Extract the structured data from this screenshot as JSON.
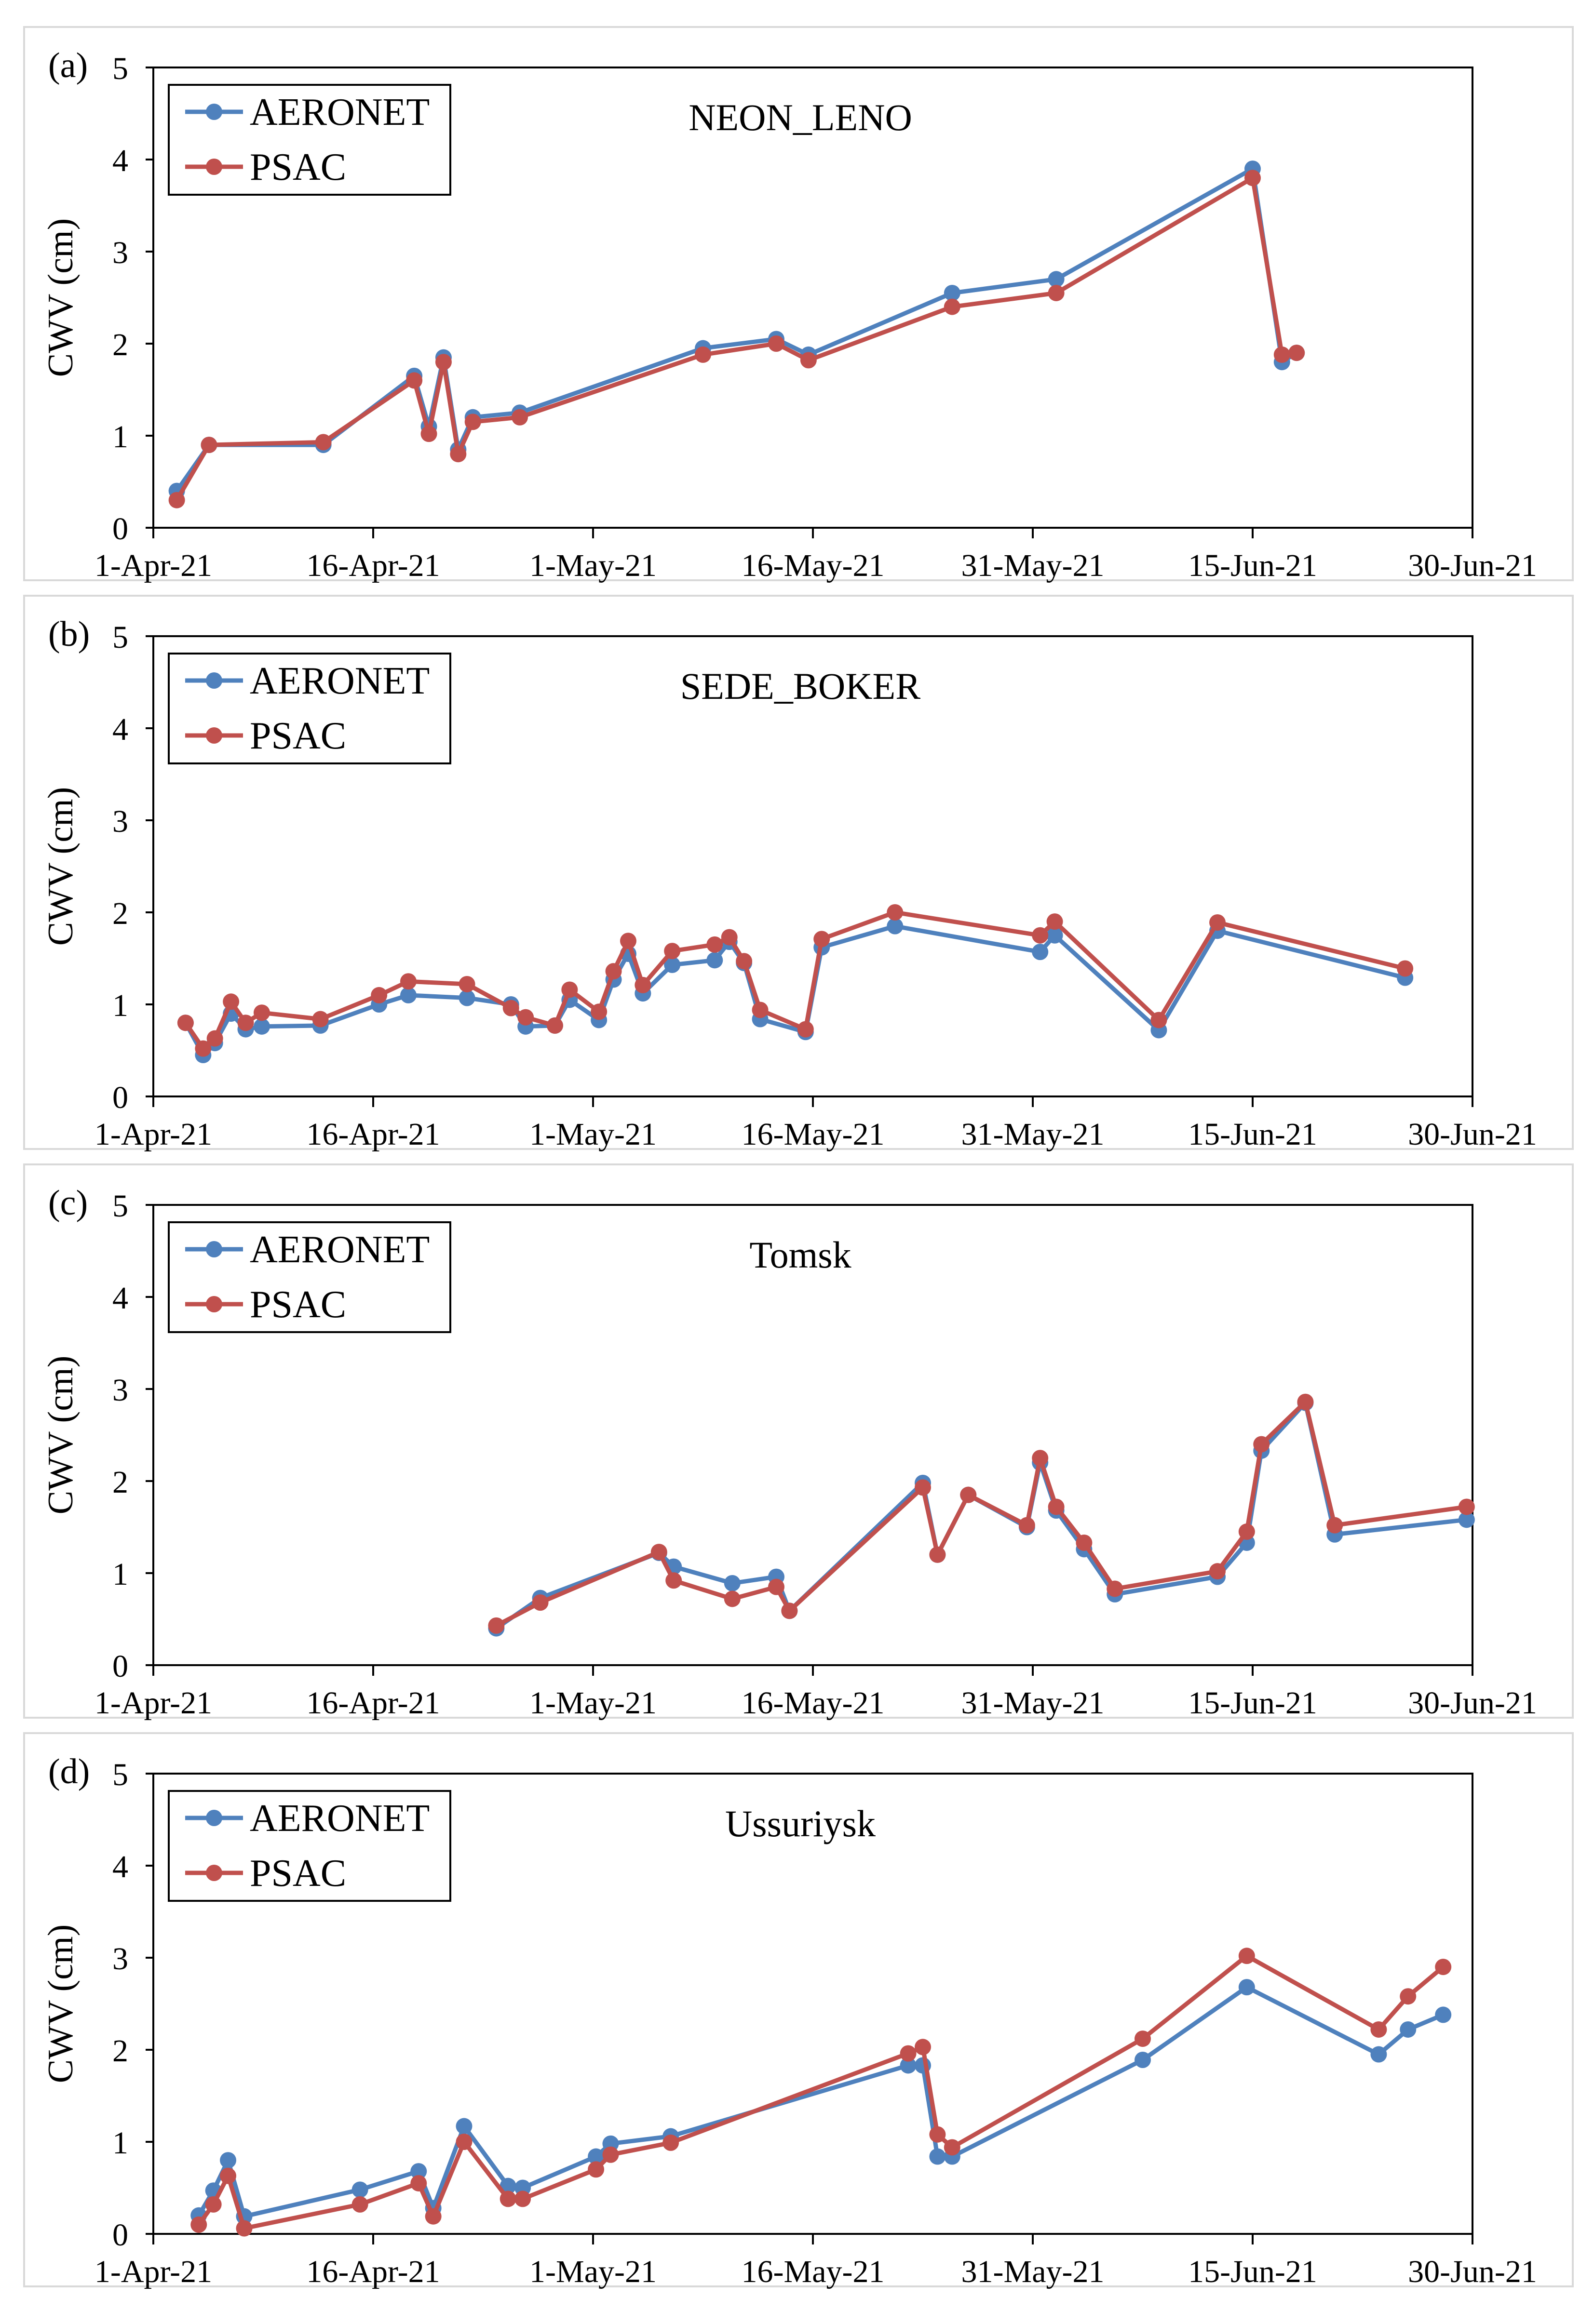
{
  "figure": {
    "series_names": [
      "AERONET",
      "PSAC"
    ],
    "series_colors": {
      "AERONET": "#4F81BD",
      "PSAC": "#C0504D"
    }
  },
  "chart_data": [
    {
      "type": "line",
      "panel_label": "(a)",
      "title": "NEON_LENO",
      "xlabel": "",
      "ylabel": "CWV (cm)",
      "ylim": [
        0,
        5
      ],
      "yticks": [
        "0",
        "1",
        "2",
        "3",
        "4",
        "5"
      ],
      "xlim_days": [
        0,
        90
      ],
      "xticks": [
        "1-Apr-21",
        "16-Apr-21",
        "1-May-21",
        "16-May-21",
        "31-May-21",
        "15-Jun-21",
        "30-Jun-21"
      ],
      "legend": {
        "position": "top-left",
        "entries": [
          "AERONET",
          "PSAC"
        ]
      },
      "series": [
        {
          "name": "AERONET",
          "x": [
            1.6,
            3.8,
            11.6,
            17.8,
            18.8,
            19.8,
            20.8,
            21.8,
            25,
            37.5,
            42.5,
            44.7,
            54.5,
            61.6,
            75,
            77,
            78
          ],
          "y": [
            0.4,
            0.9,
            0.9,
            1.65,
            1.1,
            1.85,
            0.85,
            1.2,
            1.25,
            1.95,
            2.05,
            1.88,
            2.55,
            2.7,
            3.9,
            1.8,
            1.9
          ]
        },
        {
          "name": "PSAC",
          "x": [
            1.6,
            3.8,
            11.6,
            17.8,
            18.8,
            19.8,
            20.8,
            21.8,
            25,
            37.5,
            42.5,
            44.7,
            54.5,
            61.6,
            75,
            77,
            78
          ],
          "y": [
            0.3,
            0.9,
            0.93,
            1.6,
            1.02,
            1.8,
            0.8,
            1.15,
            1.2,
            1.88,
            2.0,
            1.82,
            2.4,
            2.55,
            3.8,
            1.88,
            1.9
          ]
        }
      ]
    },
    {
      "type": "line",
      "panel_label": "(b)",
      "title": "SEDE_BOKER",
      "xlabel": "",
      "ylabel": "CWV (cm)",
      "ylim": [
        0,
        5
      ],
      "yticks": [
        "0",
        "1",
        "2",
        "3",
        "4",
        "5"
      ],
      "xlim_days": [
        0,
        90
      ],
      "xticks": [
        "1-Apr-21",
        "16-Apr-21",
        "1-May-21",
        "16-May-21",
        "31-May-21",
        "15-Jun-21",
        "30-Jun-21"
      ],
      "legend": {
        "position": "top-left",
        "entries": [
          "AERONET",
          "PSAC"
        ]
      },
      "series": [
        {
          "name": "AERONET",
          "x": [
            2.2,
            3.4,
            4.2,
            5.3,
            6.3,
            7.4,
            11.4,
            15.4,
            17.4,
            21.4,
            24.4,
            25.4,
            27.4,
            28.4,
            30.4,
            31.4,
            32.4,
            33.4,
            35.4,
            38.3,
            39.3,
            40.3,
            41.4,
            44.5,
            45.6,
            50.6,
            60.5,
            61.5,
            68.6,
            72.6,
            85.4
          ],
          "y": [
            0.8,
            0.45,
            0.58,
            0.9,
            0.73,
            0.76,
            0.77,
            1.0,
            1.1,
            1.07,
            1.0,
            0.76,
            0.77,
            1.05,
            0.83,
            1.27,
            1.55,
            1.12,
            1.43,
            1.48,
            1.68,
            1.45,
            0.84,
            0.7,
            1.62,
            1.85,
            1.57,
            1.75,
            0.72,
            1.8,
            1.29
          ]
        },
        {
          "name": "PSAC",
          "x": [
            2.2,
            3.4,
            4.2,
            5.3,
            6.3,
            7.4,
            11.4,
            15.4,
            17.4,
            21.4,
            24.4,
            25.4,
            27.4,
            28.4,
            30.4,
            31.4,
            32.4,
            33.4,
            35.4,
            38.3,
            39.3,
            40.3,
            41.4,
            44.5,
            45.6,
            50.6,
            60.5,
            61.5,
            68.6,
            72.6,
            85.4
          ],
          "y": [
            0.8,
            0.52,
            0.63,
            1.03,
            0.8,
            0.91,
            0.84,
            1.1,
            1.25,
            1.22,
            0.96,
            0.86,
            0.77,
            1.16,
            0.92,
            1.36,
            1.69,
            1.21,
            1.58,
            1.65,
            1.73,
            1.47,
            0.94,
            0.73,
            1.71,
            2.0,
            1.75,
            1.9,
            0.83,
            1.89,
            1.39
          ]
        }
      ]
    },
    {
      "type": "line",
      "panel_label": "(c)",
      "title": "Tomsk",
      "xlabel": "",
      "ylabel": "CWV (cm)",
      "ylim": [
        0,
        5
      ],
      "yticks": [
        "0",
        "1",
        "2",
        "3",
        "4",
        "5"
      ],
      "xlim_days": [
        0,
        90
      ],
      "xticks": [
        "1-Apr-21",
        "16-Apr-21",
        "1-May-21",
        "16-May-21",
        "31-May-21",
        "15-Jun-21",
        "30-Jun-21"
      ],
      "legend": {
        "position": "top-left",
        "entries": [
          "AERONET",
          "PSAC"
        ]
      },
      "series": [
        {
          "name": "AERONET",
          "x": [
            23.4,
            26.4,
            34.5,
            35.5,
            39.5,
            42.5,
            43.4,
            52.5,
            53.5,
            55.6,
            59.6,
            60.5,
            61.6,
            63.5,
            65.6,
            72.6,
            74.6,
            75.6,
            78.6,
            80.6,
            89.6
          ],
          "y": [
            0.4,
            0.73,
            1.22,
            1.07,
            0.89,
            0.96,
            0.59,
            1.98,
            1.2,
            1.85,
            1.5,
            2.2,
            1.68,
            1.26,
            0.77,
            0.96,
            1.33,
            2.33,
            2.85,
            1.42,
            1.58
          ]
        },
        {
          "name": "PSAC",
          "x": [
            23.4,
            26.4,
            34.5,
            35.5,
            39.5,
            42.5,
            43.4,
            52.5,
            53.5,
            55.6,
            59.6,
            60.5,
            61.6,
            63.5,
            65.6,
            72.6,
            74.6,
            75.6,
            78.6,
            80.6,
            89.6
          ],
          "y": [
            0.43,
            0.68,
            1.23,
            0.92,
            0.72,
            0.85,
            0.59,
            1.93,
            1.2,
            1.85,
            1.52,
            2.25,
            1.72,
            1.33,
            0.83,
            1.02,
            1.45,
            2.4,
            2.86,
            1.52,
            1.72
          ]
        }
      ]
    },
    {
      "type": "line",
      "panel_label": "(d)",
      "title": "Ussuriysk",
      "xlabel": "",
      "ylabel": "CWV (cm)",
      "ylim": [
        0,
        5
      ],
      "yticks": [
        "0",
        "1",
        "2",
        "3",
        "4",
        "5"
      ],
      "xlim_days": [
        0,
        90
      ],
      "xticks": [
        "1-Apr-21",
        "16-Apr-21",
        "1-May-21",
        "16-May-21",
        "31-May-21",
        "15-Jun-21",
        "30-Jun-21"
      ],
      "legend": {
        "position": "top-left",
        "entries": [
          "AERONET",
          "PSAC"
        ]
      },
      "series": [
        {
          "name": "AERONET",
          "x": [
            3.1,
            4.1,
            5.1,
            6.2,
            14.1,
            18.1,
            19.1,
            21.2,
            24.2,
            25.2,
            30.2,
            31.2,
            35.3,
            51.5,
            52.5,
            53.5,
            54.5,
            67.5,
            74.6,
            83.6,
            85.6,
            88.0
          ],
          "y": [
            0.2,
            0.47,
            0.8,
            0.19,
            0.48,
            0.68,
            0.28,
            1.17,
            0.52,
            0.5,
            0.84,
            0.98,
            1.06,
            1.83,
            1.83,
            0.84,
            0.84,
            1.89,
            2.68,
            1.95,
            2.22,
            2.38
          ]
        },
        {
          "name": "PSAC",
          "x": [
            3.1,
            4.1,
            5.1,
            6.2,
            14.1,
            18.1,
            19.1,
            21.2,
            24.2,
            25.2,
            30.2,
            31.2,
            35.3,
            51.5,
            52.5,
            53.5,
            54.5,
            67.5,
            74.6,
            83.6,
            85.6,
            88.0
          ],
          "y": [
            0.1,
            0.32,
            0.63,
            0.06,
            0.32,
            0.55,
            0.19,
            1.0,
            0.38,
            0.38,
            0.7,
            0.86,
            0.99,
            1.96,
            2.03,
            1.08,
            0.94,
            2.12,
            3.02,
            2.22,
            2.58,
            2.9
          ]
        }
      ]
    }
  ]
}
